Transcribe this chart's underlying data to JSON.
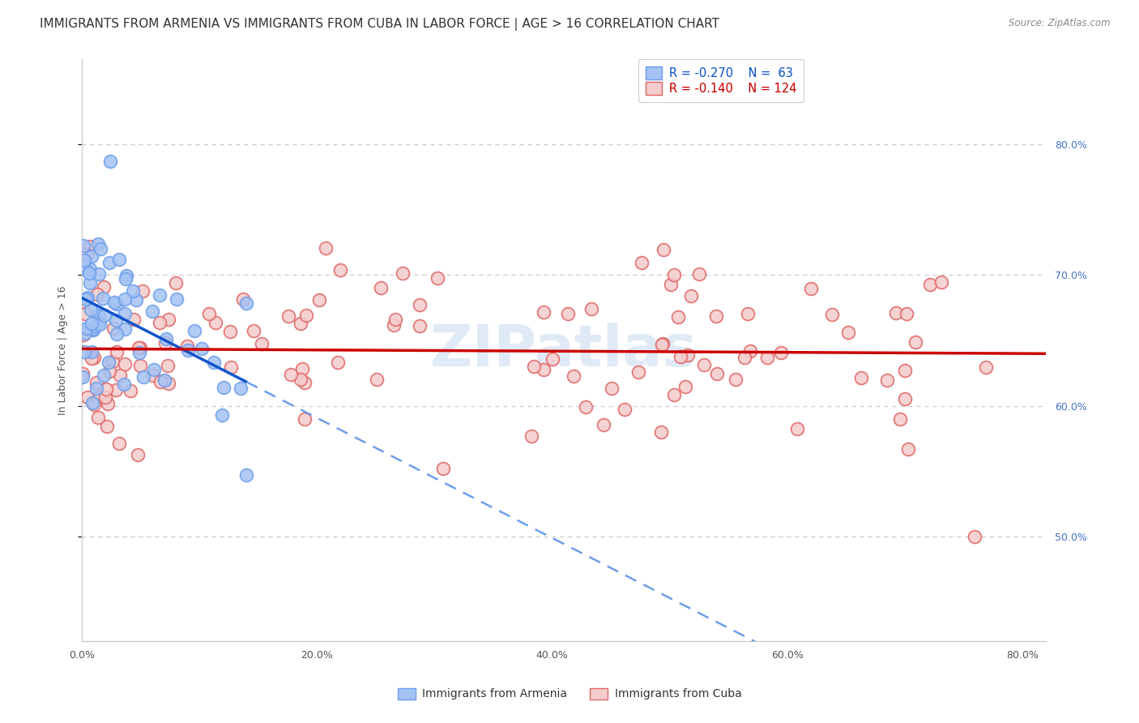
{
  "title": "IMMIGRANTS FROM ARMENIA VS IMMIGRANTS FROM CUBA IN LABOR FORCE | AGE > 16 CORRELATION CHART",
  "source": "Source: ZipAtlas.com",
  "ylabel_left": "In Labor Force | Age > 16",
  "xlabel_vals": [
    0.0,
    0.2,
    0.4,
    0.6,
    0.8
  ],
  "ylabel_right_vals": [
    0.5,
    0.6,
    0.7,
    0.8
  ],
  "xmin": 0.0,
  "xmax": 0.82,
  "ymin": 0.42,
  "ymax": 0.865,
  "legend_r_armenia": "-0.270",
  "legend_n_armenia": "63",
  "legend_r_cuba": "-0.140",
  "legend_n_cuba": "124",
  "armenia_face_color": "#a4c2f4",
  "armenia_edge_color": "#6d9eeb",
  "cuba_face_color": "#f4cccc",
  "cuba_edge_color": "#e06666",
  "armenia_line_color": "#1155cc",
  "cuba_line_color": "#cc0000",
  "dashed_line_color": "#6d9eeb",
  "background_color": "#ffffff",
  "grid_color": "#cccccc",
  "title_fontsize": 11,
  "axis_fontsize": 9,
  "watermark_color": "#c8d8f0"
}
